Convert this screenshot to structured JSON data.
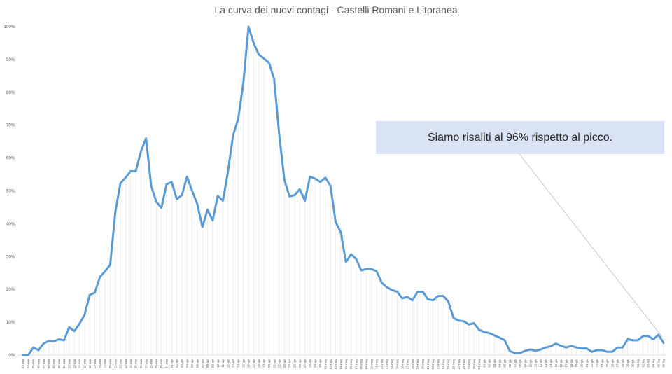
{
  "chart_data": {
    "type": "line",
    "title": "La curva dei nuovi contagi - Castelli Romani e Litoranea",
    "xlabel": "",
    "ylabel": "",
    "ylim": [
      0,
      100
    ],
    "y_ticks": [
      "0%",
      "10%",
      "20%",
      "30%",
      "40%",
      "50%",
      "60%",
      "70%",
      "80%",
      "90%",
      "100%"
    ],
    "grid": false,
    "legend": "none",
    "categories": [
      "03-mar",
      "04-mar",
      "05-mar",
      "06-mar",
      "07-mar",
      "08-mar",
      "09-mar",
      "10-mar",
      "11-mar",
      "12-mar",
      "13-mar",
      "14-mar",
      "15-mar",
      "16-mar",
      "17-mar",
      "18-mar",
      "19-mar",
      "20-mar",
      "21-mar",
      "22-mar",
      "23-mar",
      "24-mar",
      "25-mar",
      "26-mar",
      "27-mar",
      "28-mar",
      "29-mar",
      "30-mar",
      "31-mar",
      "01-apr",
      "02-apr",
      "03-apr",
      "04-apr",
      "05-apr",
      "06-apr",
      "07-apr",
      "08-apr",
      "09-apr",
      "10-apr",
      "11-apr",
      "12-apr",
      "13-apr",
      "14-apr",
      "15-apr",
      "16-apr",
      "17-apr",
      "18-apr",
      "19-apr",
      "20-apr",
      "21-apr",
      "22-apr",
      "23-apr",
      "24-apr",
      "25-apr",
      "26-apr",
      "27-apr",
      "28-apr",
      "29-apr",
      "30-apr",
      "01-mag",
      "02-mag",
      "03-mag",
      "04-mag",
      "05-mag",
      "06-mag",
      "07-mag",
      "08-mag",
      "09-mag",
      "10-mag",
      "11-mag",
      "12-mag",
      "13-mag",
      "14-mag",
      "15-mag",
      "16-mag",
      "17-mag",
      "18-mag",
      "19-mag",
      "20-mag",
      "21-mag",
      "22-mag",
      "23-mag",
      "24-mag",
      "25-mag",
      "26-mag",
      "27-mag",
      "28-mag",
      "29-mag",
      "30-mag",
      "31-mag",
      "01-giu",
      "02-giu",
      "03-giu",
      "04-giu",
      "05-giu",
      "06-giu",
      "07-giu",
      "08-giu",
      "09-giu",
      "10-giu",
      "11-giu",
      "12-giu",
      "13-giu",
      "14-giu",
      "15-giu",
      "16-giu",
      "17-giu",
      "18-giu",
      "19-giu",
      "20-giu",
      "21-giu",
      "22-giu",
      "23-giu",
      "24-giu",
      "25-giu",
      "26-giu",
      "27-giu",
      "28-giu",
      "29-giu",
      "30-giu",
      "01-lug",
      "02-lug",
      "03-lug",
      "04-lug",
      "05-lug",
      "06-lug"
    ],
    "series": [
      {
        "color": "#5b9bd5",
        "values": [
          0,
          0,
          2.3,
          1.5,
          3.5,
          4.3,
          4.2,
          4.8,
          4.5,
          8.5,
          7.3,
          9.5,
          12.3,
          18.3,
          19.0,
          23.8,
          25.5,
          27.5,
          43.5,
          52.3,
          54.0,
          56.0,
          56.0,
          62.0,
          66.0,
          51.5,
          46.7,
          44.8,
          52.0,
          52.7,
          47.5,
          48.7,
          54.3,
          50.0,
          46.0,
          39.0,
          44.3,
          41.0,
          48.5,
          47.0,
          56.0,
          67.0,
          72.0,
          83.0,
          100.0,
          95.0,
          91.5,
          90.3,
          89.0,
          84.0,
          67.0,
          53.3,
          48.3,
          48.7,
          50.5,
          47.0,
          54.3,
          53.7,
          52.7,
          54.0,
          51.5,
          40.5,
          37.5,
          28.3,
          30.7,
          29.3,
          25.8,
          26.2,
          26.2,
          25.5,
          22.0,
          20.7,
          19.8,
          19.3,
          17.3,
          17.7,
          16.7,
          19.3,
          19.3,
          17.0,
          16.7,
          18.0,
          18.0,
          16.3,
          11.3,
          10.5,
          10.3,
          9.3,
          9.7,
          7.7,
          7.0,
          6.7,
          6.0,
          5.3,
          4.5,
          1.2,
          0.6,
          0.6,
          1.3,
          1.7,
          1.3,
          1.7,
          2.3,
          2.7,
          3.5,
          2.8,
          2.3,
          2.8,
          2.3,
          2.0,
          2.0,
          1.0,
          1.5,
          1.5,
          1.0,
          1.0,
          2.3,
          2.3,
          4.8,
          4.5,
          4.5,
          5.8,
          5.8,
          4.8,
          6.2,
          3.7
        ]
      }
    ],
    "annotation": "Siamo risaliti al 96% rispetto al picco."
  }
}
